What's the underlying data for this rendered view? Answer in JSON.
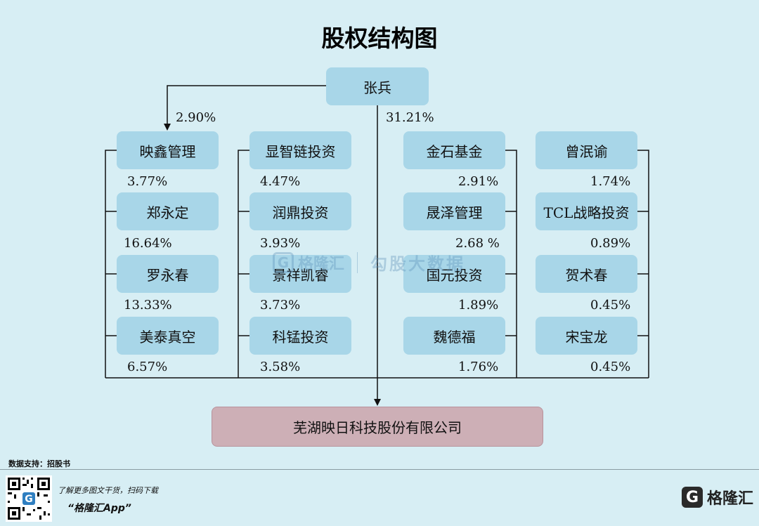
{
  "title": "股权结构图",
  "top": {
    "name": "张兵",
    "pct_left": "2.90%",
    "pct_center": "31.21%"
  },
  "columns": [
    {
      "items": [
        {
          "name": "映鑫管理",
          "pct": "3.77%"
        },
        {
          "name": "郑永定",
          "pct": "16.64%"
        },
        {
          "name": "罗永春",
          "pct": "13.33%"
        },
        {
          "name": "美泰真空",
          "pct": "6.57%"
        }
      ]
    },
    {
      "items": [
        {
          "name": "显智链投资",
          "pct": "4.47%"
        },
        {
          "name": "润鼎投资",
          "pct": "3.93%"
        },
        {
          "name": "景祥凯睿",
          "pct": "3.73%"
        },
        {
          "name": "科锰投资",
          "pct": "3.58%"
        }
      ]
    },
    {
      "items": [
        {
          "name": "金石基金",
          "pct": "2.91%"
        },
        {
          "name": "晟泽管理",
          "pct": "2.68 %"
        },
        {
          "name": "国元投资",
          "pct": "1.89%"
        },
        {
          "name": "魏德福",
          "pct": "1.76%"
        }
      ]
    },
    {
      "items": [
        {
          "name": "曾泯谕",
          "pct": "1.74%"
        },
        {
          "name": "TCL战略投资",
          "pct": "0.89%"
        },
        {
          "name": "贺术春",
          "pct": "0.45%"
        },
        {
          "name": "宋宝龙",
          "pct": "0.45%"
        }
      ]
    }
  ],
  "company": "芜湖映日科技股份有限公司",
  "footer": {
    "source": "数据支持：招股书",
    "promo": "了解更多图文干货，扫码下载",
    "app": "“格隆汇App”",
    "logo_text": "格隆汇",
    "logo_mark": "G"
  },
  "watermark": {
    "brand": "格隆汇",
    "product": "勾股大数据",
    "mark": "G"
  },
  "colors": {
    "background": "#d7eef4",
    "box": "#a8d6e8",
    "company_box": "#cdafb6",
    "line": "#111111"
  }
}
